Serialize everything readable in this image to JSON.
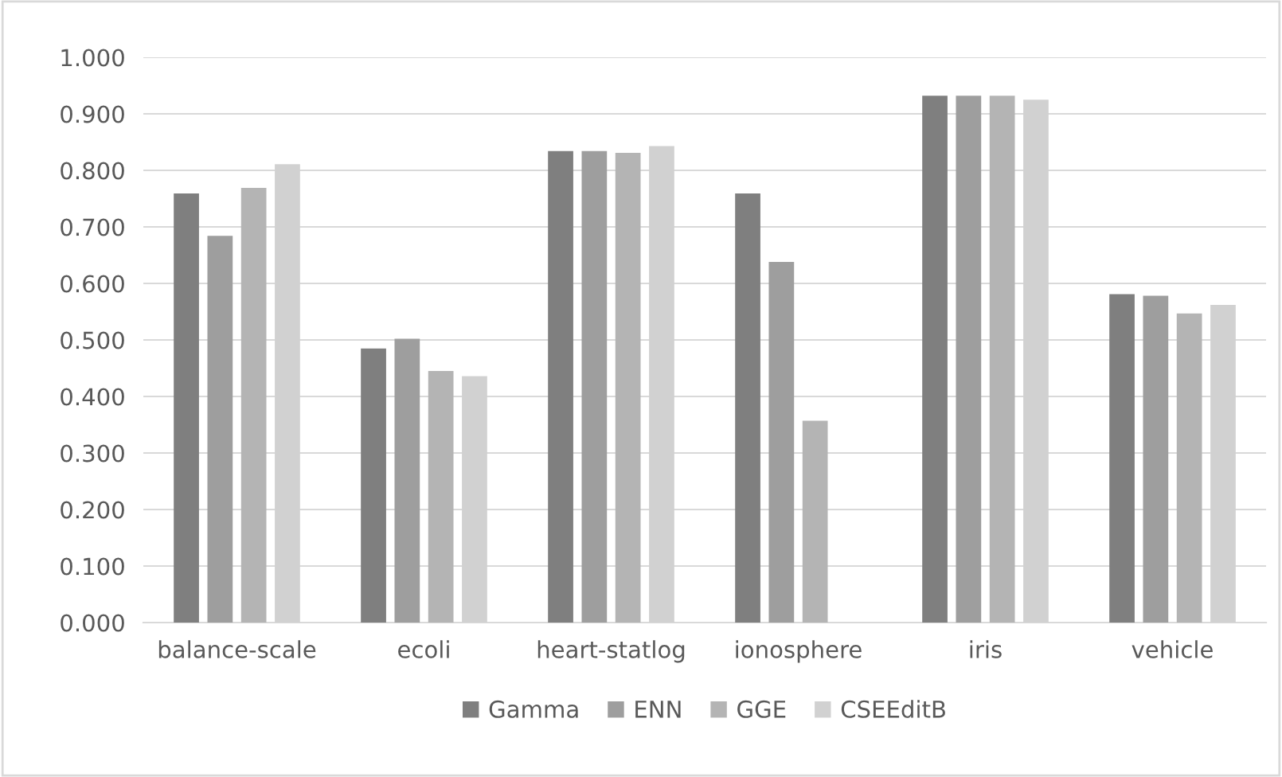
{
  "chart_data": {
    "type": "bar",
    "categories": [
      "balance-scale",
      "ecoli",
      "heart-statlog",
      "ionosphere",
      "iris",
      "vehicle"
    ],
    "series": [
      {
        "name": "Gamma",
        "color": "#7f7f7f",
        "values": [
          0.759,
          0.485,
          0.834,
          0.759,
          0.932,
          0.581
        ]
      },
      {
        "name": "ENN",
        "color": "#9e9e9e",
        "values": [
          0.684,
          0.502,
          0.834,
          0.638,
          0.932,
          0.578
        ]
      },
      {
        "name": "GGE",
        "color": "#b4b4b4",
        "values": [
          0.769,
          0.445,
          0.831,
          0.357,
          0.932,
          0.547
        ]
      },
      {
        "name": "CSEEditB",
        "color": "#d1d1d1",
        "values": [
          0.811,
          0.436,
          0.843,
          null,
          0.925,
          0.562
        ]
      }
    ],
    "ylim": [
      0,
      1.0
    ],
    "yticks": [
      {
        "value": 0,
        "label": "0.000"
      },
      {
        "value": 0.1,
        "label": "0.100"
      },
      {
        "value": 0.2,
        "label": "0.200"
      },
      {
        "value": 0.3,
        "label": "0.300"
      },
      {
        "value": 0.4,
        "label": "0.400"
      },
      {
        "value": 0.5,
        "label": "0.500"
      },
      {
        "value": 0.6,
        "label": "0.600"
      },
      {
        "value": 0.7,
        "label": "0.700"
      },
      {
        "value": 0.8,
        "label": "0.800"
      },
      {
        "value": 0.9,
        "label": "0.900"
      },
      {
        "value": 1.0,
        "label": "1.000"
      }
    ],
    "grid": "y",
    "legend": "bottom"
  }
}
